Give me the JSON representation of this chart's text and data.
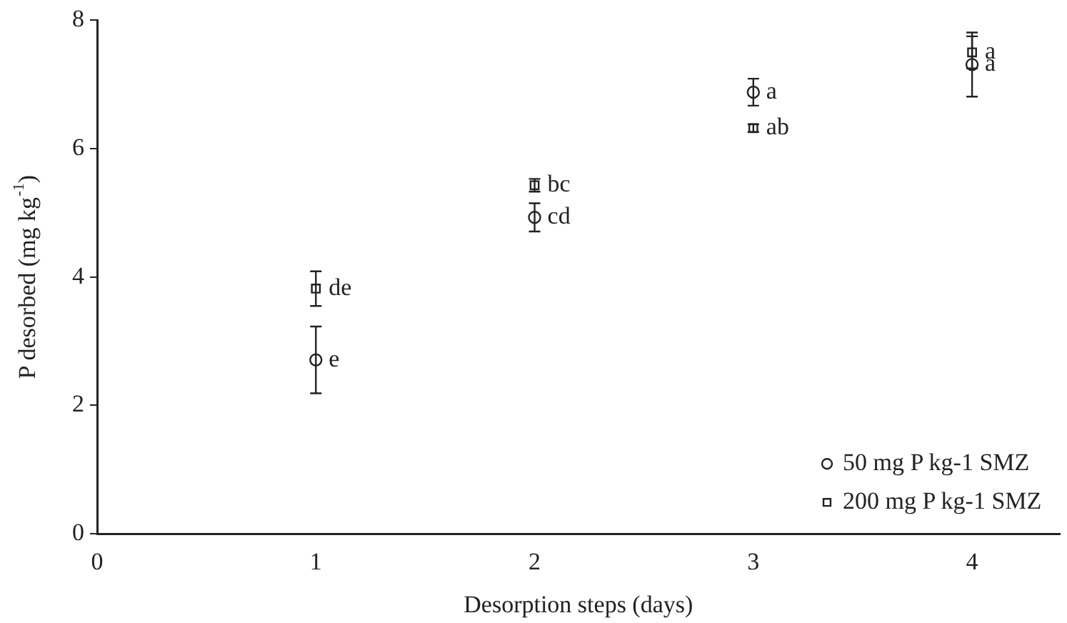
{
  "chart_data": {
    "type": "scatter",
    "xlabel": "Desorption steps (days)",
    "ylabel": "P desorbed (mg kg$^{-1}$)",
    "x": [
      1,
      2,
      3,
      4
    ],
    "series": [
      {
        "name": "50 mg P kg-1 SMZ",
        "color": "#222222",
        "marker": "circle",
        "values": [
          2.71,
          4.93,
          6.88,
          7.31
        ],
        "errors": [
          0.52,
          0.22,
          0.21,
          0.5
        ]
      },
      {
        "name": "200 mg P kg-1 SMZ",
        "color": "#222222",
        "marker": "square",
        "values": [
          3.82,
          5.43,
          6.32,
          7.5
        ],
        "errors": [
          0.27,
          0.1,
          0.06,
          0.25
        ]
      }
    ],
    "annotations": [
      {
        "text": "e",
        "x": 1,
        "y": 2.71
      },
      {
        "text": "de",
        "x": 1,
        "y": 3.82
      },
      {
        "text": "cd",
        "x": 2,
        "y": 4.93
      },
      {
        "text": "bc",
        "x": 2,
        "y": 5.43
      },
      {
        "text": "a",
        "x": 3,
        "y": 6.88
      },
      {
        "text": "ab",
        "x": 3,
        "y": 6.32
      },
      {
        "text": "a",
        "x": 4,
        "y": 7.31
      },
      {
        "text": "a",
        "x": 4,
        "y": 7.5
      }
    ],
    "xlim": [
      0,
      4.4
    ],
    "xticks": [
      0,
      1,
      2,
      3,
      4
    ],
    "ylim": [
      0,
      8
    ],
    "yticks": [
      0,
      2,
      4,
      6,
      8
    ],
    "grid": false,
    "legend": "bottom right"
  }
}
